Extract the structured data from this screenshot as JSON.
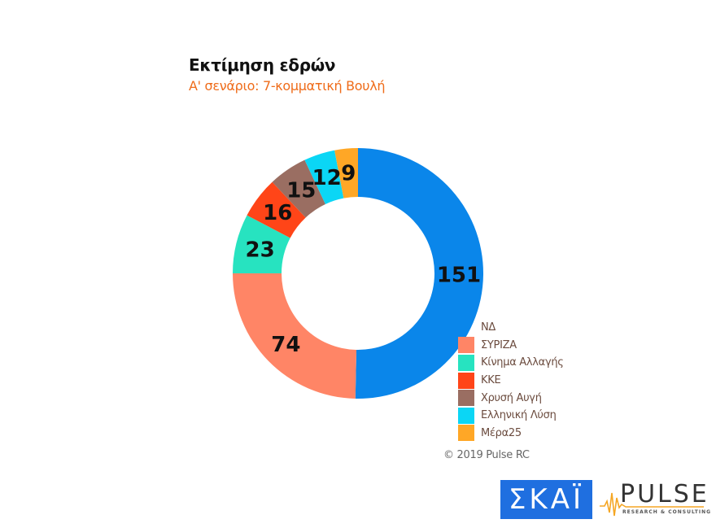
{
  "header": {
    "title": "Εκτίμηση εδρών",
    "subtitle": "Α' σενάριο: 7-κομματική Βουλή"
  },
  "footer": {
    "copyright": "© 2019 Pulse RC",
    "logos": {
      "skai": "ΣΚΑΪ",
      "pulse": "PULSE",
      "pulse_tagline": "RESEARCH & CONSULTING"
    }
  },
  "colors": {
    "title": "#111111",
    "subtitle": "#ef6c1a",
    "legend_text": "#6b4b3e"
  },
  "chart_data": {
    "type": "pie",
    "subtype": "donut",
    "title": "Εκτίμηση εδρών",
    "subtitle": "Α' σενάριο: 7-κομματική Βουλή",
    "total": 300,
    "start_angle_deg": 0,
    "direction": "clockwise",
    "legend_position": "right-bottom",
    "categories": [
      "ΝΔ",
      "ΣΥΡΙΖΑ",
      "Κίνημα Αλλαγής",
      "ΚΚΕ",
      "Χρυσή Αυγή",
      "Ελληνική Λύση",
      "Μέρα25"
    ],
    "values": [
      151,
      74,
      23,
      16,
      15,
      12,
      9
    ],
    "colors": [
      "#0a86ea",
      "#ff8566",
      "#27e3c0",
      "#ff4518",
      "#9a6e62",
      "#0bd6f5",
      "#ffa726"
    ],
    "legend": [
      {
        "label": "ΝΔ",
        "color": "#0a86ea",
        "show_swatch": false
      },
      {
        "label": "ΣΥΡΙΖΑ",
        "color": "#ff8566",
        "show_swatch": true
      },
      {
        "label": "Κίνημα Αλλαγής",
        "color": "#27e3c0",
        "show_swatch": true
      },
      {
        "label": "ΚΚΕ",
        "color": "#ff4518",
        "show_swatch": true
      },
      {
        "label": "Χρυσή Αυγή",
        "color": "#9a6e62",
        "show_swatch": true
      },
      {
        "label": "Ελληνική Λύση",
        "color": "#0bd6f5",
        "show_swatch": true
      },
      {
        "label": "Μέρα25",
        "color": "#ffa726",
        "show_swatch": true
      }
    ]
  }
}
